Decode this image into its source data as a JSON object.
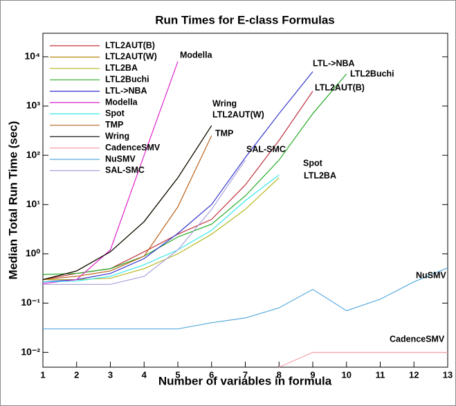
{
  "chart_data": {
    "type": "line",
    "title": "Run Times for E-class Formulas",
    "x_label": "Number of variables in formula",
    "y_label": "Median Total Run Time (sec)",
    "y_log": true,
    "legend": "upper left",
    "x": [
      1,
      2,
      3,
      4,
      5,
      6,
      7,
      8,
      9,
      10,
      11,
      12,
      13
    ],
    "xlim": [
      1,
      13
    ],
    "xticks": [
      1,
      2,
      3,
      4,
      5,
      6,
      7,
      8,
      9,
      10,
      11,
      12,
      13
    ],
    "ylim": [
      0.005,
      30000
    ],
    "yticks": [
      {
        "value": 0.01,
        "label": "10⁻²"
      },
      {
        "value": 0.1,
        "label": "10⁻¹"
      },
      {
        "value": 1,
        "label": "10⁰"
      },
      {
        "value": 10,
        "label": "10¹"
      },
      {
        "value": 100,
        "label": "10²"
      },
      {
        "value": 1000,
        "label": "10³"
      },
      {
        "value": 10000,
        "label": "10⁴"
      }
    ],
    "series": [
      {
        "name": "LTL2AUT(B)",
        "color": "#c0303a",
        "values": [
          0.3,
          0.4,
          0.5,
          1.1,
          2.5,
          5,
          25,
          200,
          2000,
          null,
          null,
          null,
          null
        ]
      },
      {
        "name": "LTL2AUT(W)",
        "color": "#b8860b",
        "values": [
          0.3,
          0.45,
          1.1,
          4.5,
          35,
          400,
          null,
          null,
          null,
          null,
          null,
          null,
          null
        ]
      },
      {
        "name": "LTL2BA",
        "color": "#b5b520",
        "values": [
          0.3,
          0.3,
          0.32,
          0.5,
          1,
          2.5,
          8,
          35,
          null,
          null,
          null,
          null,
          null
        ]
      },
      {
        "name": "LTL2Buchi",
        "color": "#22aa22",
        "values": [
          0.38,
          0.4,
          0.5,
          0.9,
          2.2,
          4,
          15,
          80,
          700,
          4500,
          null,
          null,
          null
        ]
      },
      {
        "name": "LTL->NBA",
        "color": "#3333cc",
        "values": [
          0.27,
          0.3,
          0.4,
          0.8,
          2.6,
          10,
          90,
          700,
          5000,
          null,
          null,
          null,
          null
        ]
      },
      {
        "name": "Modella",
        "color": "#dd22cc",
        "values": [
          0.25,
          0.3,
          1.2,
          100,
          8000,
          null,
          null,
          null,
          null,
          null,
          null,
          null,
          null
        ]
      },
      {
        "name": "Spot",
        "color": "#33e8e8",
        "values": [
          0.27,
          0.28,
          0.35,
          0.6,
          1.2,
          3,
          12,
          40,
          null,
          null,
          null,
          null,
          null
        ]
      },
      {
        "name": "TMP",
        "color": "#b8601a",
        "values": [
          0.3,
          0.35,
          0.45,
          0.9,
          9,
          250,
          null,
          null,
          null,
          null,
          null,
          null,
          null
        ]
      },
      {
        "name": "Wring",
        "color": "#000000",
        "values": [
          0.3,
          0.45,
          1.1,
          4.5,
          35,
          400,
          null,
          null,
          null,
          null,
          null,
          null,
          null
        ]
      },
      {
        "name": "CadenceSMV",
        "color": "#f4a0a8",
        "values": [
          null,
          null,
          null,
          null,
          null,
          null,
          null,
          0.005,
          0.01,
          0.01,
          0.01,
          0.01,
          0.01
        ]
      },
      {
        "name": "NuSMV",
        "color": "#55aadd",
        "values": [
          0.03,
          0.03,
          0.03,
          0.03,
          0.03,
          0.04,
          0.05,
          0.08,
          0.19,
          0.07,
          0.12,
          0.27,
          0.52
        ]
      },
      {
        "name": "SAL-SMC",
        "color": "#aaa0dd",
        "values": [
          0.24,
          0.24,
          0.24,
          0.35,
          1.2,
          8,
          80,
          null,
          null,
          null,
          null,
          null,
          null
        ]
      }
    ],
    "annotations": [
      "Modella",
      "LTL->NBA",
      "LTL2Buchi",
      "LTL2AUT(B)",
      "Wring",
      "LTL2AUT(W)",
      "TMP",
      "SAL-SMC",
      "Spot",
      "LTL2BA",
      "NuSMV",
      "CadenceSMV"
    ]
  }
}
